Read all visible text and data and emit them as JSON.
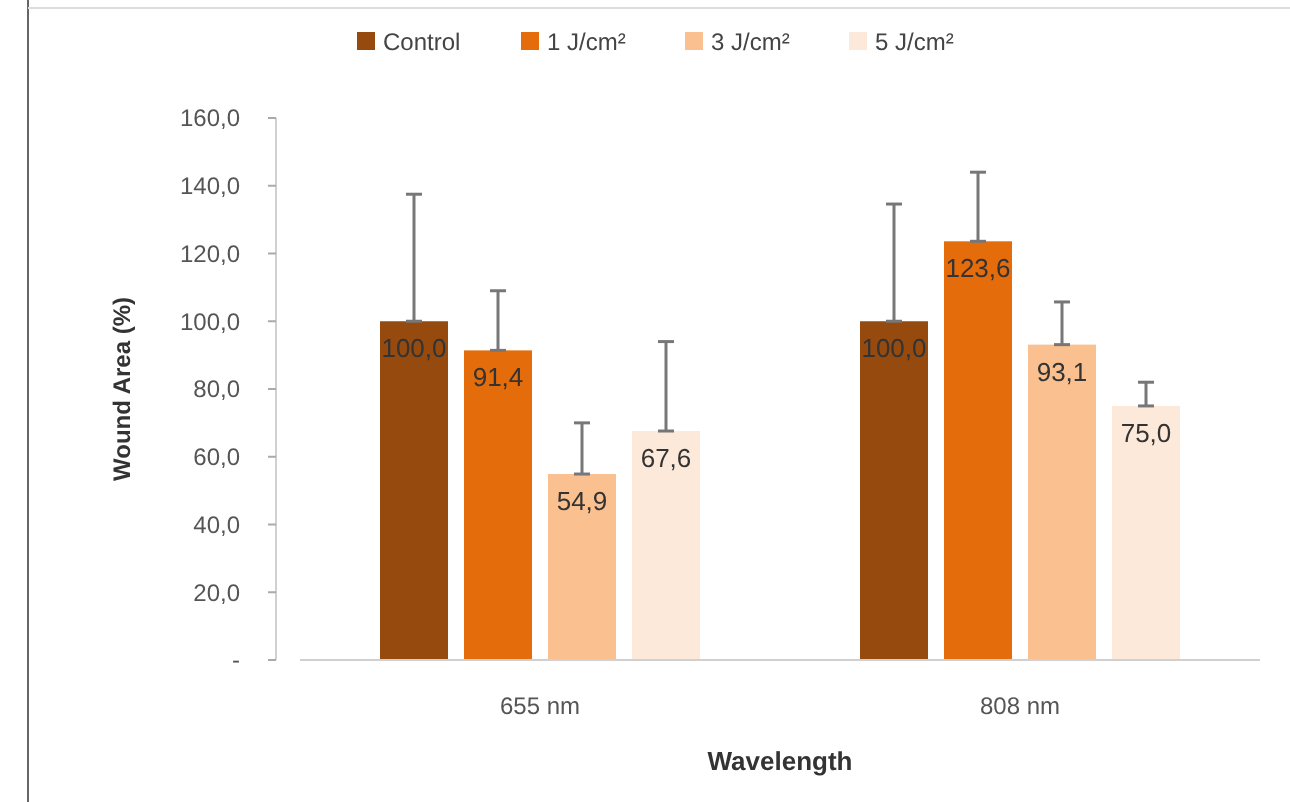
{
  "chart_data": {
    "type": "bar",
    "xlabel": "Wavelength",
    "ylabel": "Wound Area (%)",
    "categories": [
      "655 nm",
      "808 nm"
    ],
    "ylim": [
      0,
      160
    ],
    "yticks": [
      {
        "value": 0,
        "label": "-"
      },
      {
        "value": 20,
        "label": "20,0"
      },
      {
        "value": 40,
        "label": "40,0"
      },
      {
        "value": 60,
        "label": "60,0"
      },
      {
        "value": 80,
        "label": "80,0"
      },
      {
        "value": 100,
        "label": "100,0"
      },
      {
        "value": 120,
        "label": "120,0"
      },
      {
        "value": 140,
        "label": "140,0"
      },
      {
        "value": 160,
        "label": "160,0"
      }
    ],
    "grid": false,
    "legend": "top",
    "series": [
      {
        "name": "Control",
        "color": "#974a0e",
        "values": [
          100.0,
          100.0
        ],
        "value_labels": [
          "100,0",
          "100,0"
        ],
        "errors": [
          [
            100.0,
            137.5
          ],
          [
            100.0,
            134.6
          ]
        ]
      },
      {
        "name": "1 J/cm²",
        "color": "#e46c0a",
        "values": [
          91.4,
          123.6
        ],
        "value_labels": [
          "91,4",
          "123,6"
        ],
        "errors": [
          [
            91.4,
            109
          ],
          [
            123.6,
            144
          ]
        ]
      },
      {
        "name": "3 J/cm²",
        "color": "#fac08f",
        "values": [
          54.9,
          93.1
        ],
        "value_labels": [
          "54,9",
          "93,1"
        ],
        "errors": [
          [
            54.9,
            70
          ],
          [
            93.1,
            105.7
          ]
        ]
      },
      {
        "name": "5 J/cm²",
        "color": "#fde9d9",
        "values": [
          67.6,
          75.0
        ],
        "value_labels": [
          "67,6",
          "75,0"
        ],
        "errors": [
          [
            67.6,
            94
          ],
          [
            75.0,
            82
          ]
        ]
      }
    ]
  }
}
